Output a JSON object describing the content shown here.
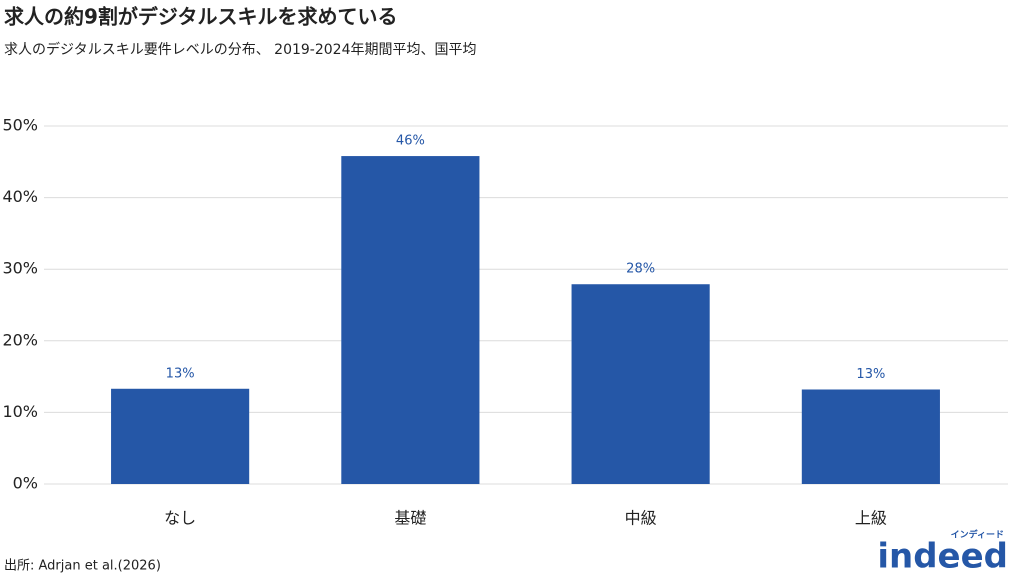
{
  "chart_data": {
    "type": "bar",
    "title": "求人の約9割がデジタルスキルを求めている",
    "subtitle": "求人のデジタルスキル要件レベルの分布、 2019-2024年期間平均、国平均",
    "categories": [
      "なし",
      "基礎",
      "中級",
      "上級"
    ],
    "values": [
      13.3,
      45.8,
      27.9,
      13.2
    ],
    "value_labels": [
      "13%",
      "46%",
      "28%",
      "13%"
    ],
    "color": "#2557a7",
    "ylim": [
      0,
      50
    ],
    "yticks": [
      {
        "value": 0,
        "label": "0%"
      },
      {
        "value": 10,
        "label": "10%"
      },
      {
        "value": 20,
        "label": "20%"
      },
      {
        "value": 30,
        "label": "30%"
      },
      {
        "value": 40,
        "label": "40%"
      },
      {
        "value": 50,
        "label": "50%"
      }
    ],
    "grid": true,
    "source": "出所: Adrjan et al.(2026)",
    "logo": {
      "text": "indeed",
      "subtext": "インディード"
    }
  }
}
